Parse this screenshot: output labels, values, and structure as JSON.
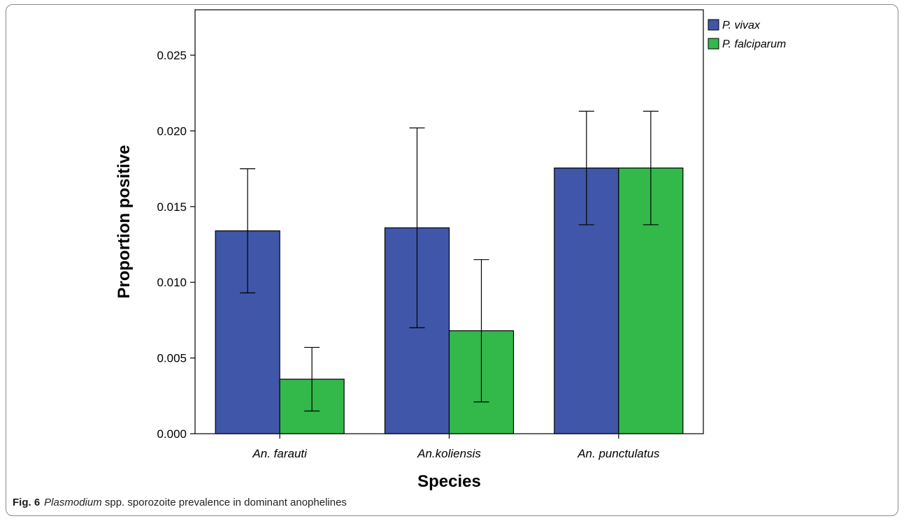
{
  "caption": {
    "fig_label": "Fig. 6",
    "genus": "Plasmodium",
    "rest": "spp. sporozoite prevalence in dominant anophelines"
  },
  "chart_data": {
    "type": "bar",
    "title": "",
    "xlabel": "Species",
    "ylabel": "Proportion positive",
    "ylim": [
      0,
      0.028
    ],
    "yticks": [
      "0.000",
      "0.005",
      "0.010",
      "0.015",
      "0.020",
      "0.025"
    ],
    "ytick_values": [
      0,
      0.005,
      0.01,
      0.015,
      0.02,
      0.025
    ],
    "categories": [
      "An. farauti",
      "An.koliensis",
      "An. punctulatus"
    ],
    "series": [
      {
        "name": "P. vivax",
        "color": "#3f56a9",
        "values": [
          0.0134,
          0.0136,
          0.01755
        ],
        "error_low": [
          0.0093,
          0.007,
          0.0138
        ],
        "error_high": [
          0.0175,
          0.0202,
          0.0213
        ]
      },
      {
        "name": "P. falciparum",
        "color": "#33b84a",
        "values": [
          0.0036,
          0.0068,
          0.01755
        ],
        "error_low": [
          0.0015,
          0.0021,
          0.0138
        ],
        "error_high": [
          0.0057,
          0.0115,
          0.0213
        ]
      }
    ],
    "legend_position": "top-right",
    "grid": false
  }
}
